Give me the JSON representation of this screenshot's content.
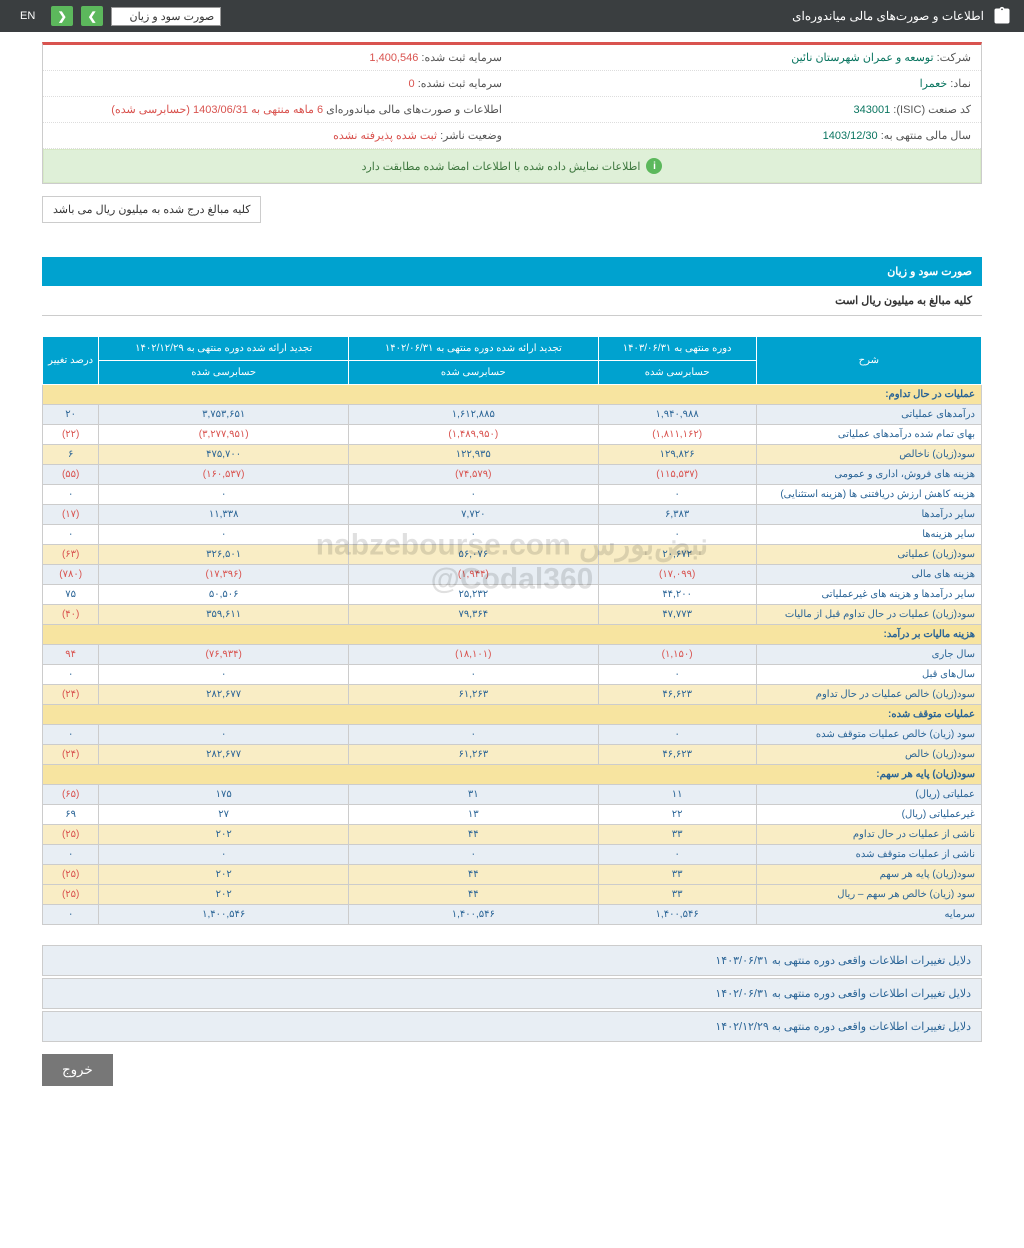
{
  "topbar": {
    "title": "اطلاعات و صورت‌های مالی میاندوره‌ای",
    "dropdown": "صورت سود و زیان",
    "en": "EN"
  },
  "info": {
    "company_label": "شرکت:",
    "company_value": "توسعه و عمران شهرستان نائین",
    "symbol_label": "نماد:",
    "symbol_value": "خعمرا",
    "isic_label": "کد صنعت (ISIC):",
    "isic_value": "343001",
    "year_label": "سال مالی منتهی به:",
    "year_value": "1403/12/30",
    "cap_reg_label": "سرمایه ثبت شده:",
    "cap_reg_value": "1,400,546",
    "cap_unreg_label": "سرمایه ثبت نشده:",
    "cap_unreg_value": "0",
    "period_label": "اطلاعات و صورت‌های مالی میاندوره‌ای",
    "period_value": "6 ماهه منتهی به 1403/06/31 (حسابرسی شده)",
    "status_label": "وضعیت ناشر:",
    "status_value": "ثبت شده پذیرفته نشده"
  },
  "notice": "اطلاعات نمایش داده شده با اطلاعات امضا شده مطابقت دارد",
  "unit_note": "کلیه مبالغ درج شده به میلیون ریال می باشد",
  "section_title": "صورت سود و زیان",
  "section_sub": "کلیه مبالغ به میلیون ریال است",
  "headers": {
    "desc": "شرح",
    "col1_top": "دوره منتهی به ۱۴۰۳/۰۶/۳۱",
    "col2_top": "تجدید ارائه شده دوره منتهی به ۱۴۰۲/۰۶/۳۱",
    "col3_top": "تجدید ارائه شده دوره منتهی به ۱۴۰۲/۱۲/۲۹",
    "pct": "درصد تغییر",
    "audited": "حسابرسی شده"
  },
  "sections": {
    "s1": "عملیات در حال تداوم:",
    "s2": "هزینه مالیات بر درآمد:",
    "s3": "عملیات متوقف شده:",
    "s4": "سود(زیان) پایه هر سهم:"
  },
  "rows": [
    {
      "desc": "درآمدهای عملیاتی",
      "c1": "۱,۹۴۰,۹۸۸",
      "c2": "۱,۶۱۲,۸۸۵",
      "c3": "۳,۷۵۳,۶۵۱",
      "pct": "۲۰",
      "cls": "even"
    },
    {
      "desc": "بهای تمام شده درآمدهای عملیاتی",
      "c1": "(۱,۸۱۱,۱۶۲)",
      "c2": "(۱,۴۸۹,۹۵۰)",
      "c3": "(۳,۲۷۷,۹۵۱)",
      "pct": "(۲۲)",
      "cls": "odd",
      "neg": true
    },
    {
      "desc": "سود(زیان) ناخالص",
      "c1": "۱۲۹,۸۲۶",
      "c2": "۱۲۲,۹۳۵",
      "c3": "۴۷۵,۷۰۰",
      "pct": "۶",
      "cls": "highlight"
    },
    {
      "desc": "هزینه های فروش، اداری و عمومی",
      "c1": "(۱۱۵,۵۳۷)",
      "c2": "(۷۴,۵۷۹)",
      "c3": "(۱۶۰,۵۳۷)",
      "pct": "(۵۵)",
      "cls": "even",
      "neg": true
    },
    {
      "desc": "هزینه کاهش ارزش دریافتنی ها (هزینه استثنایی)",
      "c1": "۰",
      "c2": "۰",
      "c3": "۰",
      "pct": "۰",
      "cls": "odd"
    },
    {
      "desc": "سایر درآمدها",
      "c1": "۶,۳۸۳",
      "c2": "۷,۷۲۰",
      "c3": "۱۱,۳۳۸",
      "pct": "(۱۷)",
      "cls": "even",
      "pneg": true
    },
    {
      "desc": "سایر هزینه‌ها",
      "c1": "۰",
      "c2": "۰",
      "c3": "۰",
      "pct": "۰",
      "cls": "odd"
    },
    {
      "desc": "سود(زیان) عملیاتی",
      "c1": "۲۰,۶۷۲",
      "c2": "۵۶,۰۷۶",
      "c3": "۳۲۶,۵۰۱",
      "pct": "(۶۳)",
      "cls": "highlight",
      "pneg": true
    },
    {
      "desc": "هزینه های مالی",
      "c1": "(۱۷,۰۹۹)",
      "c2": "(۱,۹۴۴)",
      "c3": "(۱۷,۳۹۶)",
      "pct": "(۷۸۰)",
      "cls": "even",
      "neg": true
    },
    {
      "desc": "سایر درآمدها و هزینه های غیرعملیاتی",
      "c1": "۴۴,۲۰۰",
      "c2": "۲۵,۲۳۲",
      "c3": "۵۰,۵۰۶",
      "pct": "۷۵",
      "cls": "odd"
    },
    {
      "desc": "سود(زیان) عملیات در حال تداوم قبل از مالیات",
      "c1": "۴۷,۷۷۳",
      "c2": "۷۹,۳۶۴",
      "c3": "۳۵۹,۶۱۱",
      "pct": "(۴۰)",
      "cls": "highlight",
      "pneg": true
    }
  ],
  "rows2": [
    {
      "desc": "سال جاری",
      "c1": "(۱,۱۵۰)",
      "c2": "(۱۸,۱۰۱)",
      "c3": "(۷۶,۹۳۴)",
      "pct": "۹۴",
      "cls": "even",
      "neg": true
    },
    {
      "desc": "سال‌های قبل",
      "c1": "۰",
      "c2": "۰",
      "c3": "۰",
      "pct": "۰",
      "cls": "odd"
    },
    {
      "desc": "سود(زیان) خالص عملیات در حال تداوم",
      "c1": "۴۶,۶۲۳",
      "c2": "۶۱,۲۶۳",
      "c3": "۲۸۲,۶۷۷",
      "pct": "(۲۴)",
      "cls": "highlight",
      "pneg": true
    }
  ],
  "rows3": [
    {
      "desc": "سود (زیان) خالص عملیات متوقف شده",
      "c1": "۰",
      "c2": "۰",
      "c3": "۰",
      "pct": "۰",
      "cls": "even"
    },
    {
      "desc": "سود(زیان) خالص",
      "c1": "۴۶,۶۲۳",
      "c2": "۶۱,۲۶۳",
      "c3": "۲۸۲,۶۷۷",
      "pct": "(۲۴)",
      "cls": "highlight",
      "pneg": true
    }
  ],
  "rows4": [
    {
      "desc": "عملیاتی (ریال)",
      "c1": "۱۱",
      "c2": "۳۱",
      "c3": "۱۷۵",
      "pct": "(۶۵)",
      "cls": "even",
      "pneg": true
    },
    {
      "desc": "غیرعملیاتی (ریال)",
      "c1": "۲۲",
      "c2": "۱۳",
      "c3": "۲۷",
      "pct": "۶۹",
      "cls": "odd"
    },
    {
      "desc": "ناشی از عملیات در حال تداوم",
      "c1": "۳۳",
      "c2": "۴۴",
      "c3": "۲۰۲",
      "pct": "(۲۵)",
      "cls": "highlight",
      "pneg": true
    },
    {
      "desc": "ناشی از عملیات متوقف شده",
      "c1": "۰",
      "c2": "۰",
      "c3": "۰",
      "pct": "۰",
      "cls": "even"
    },
    {
      "desc": "سود(زیان) پایه هر سهم",
      "c1": "۳۳",
      "c2": "۴۴",
      "c3": "۲۰۲",
      "pct": "(۲۵)",
      "cls": "highlight",
      "pneg": true
    },
    {
      "desc": "سود (زیان) خالص هر سهم – ریال",
      "c1": "۳۳",
      "c2": "۴۴",
      "c3": "۲۰۲",
      "pct": "(۲۵)",
      "cls": "highlight",
      "pneg": true
    },
    {
      "desc": "سرمایه",
      "c1": "۱,۴۰۰,۵۴۶",
      "c2": "۱,۴۰۰,۵۴۶",
      "c3": "۱,۴۰۰,۵۴۶",
      "pct": "۰",
      "cls": "even"
    }
  ],
  "reasons": [
    "دلایل تغییرات اطلاعات واقعی دوره منتهی به ۱۴۰۳/۰۶/۳۱",
    "دلایل تغییرات اطلاعات واقعی دوره منتهی به ۱۴۰۲/۰۶/۳۱",
    "دلایل تغییرات اطلاعات واقعی دوره منتهی به ۱۴۰۲/۱۲/۲۹"
  ],
  "exit": "خروج",
  "watermark": "نبض‌بورس\nnabzebourse.com\n@Codal360"
}
